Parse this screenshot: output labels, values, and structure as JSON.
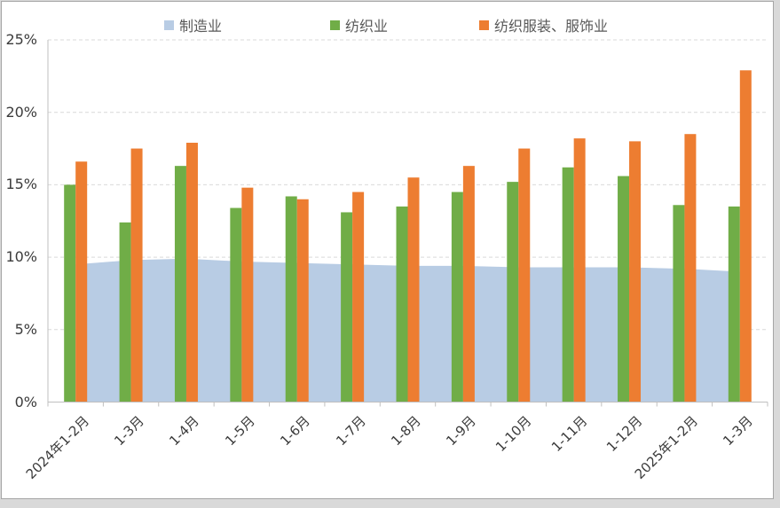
{
  "colors": {
    "grid": "#D9D9D9",
    "axis": "#BFBFBF",
    "tick_text": "#3B3B3B",
    "legend_text": "#595959",
    "frame_border": "#A6A6A6",
    "outer_background": "#D9D9D9",
    "background": "#FFFFFF"
  },
  "chart_data": {
    "type": "combo (area + grouped bars)",
    "title": "",
    "xlabel": "",
    "ylabel": "",
    "legend_position": "top",
    "grid": "horizontal dashed",
    "ylim": [
      0,
      25
    ],
    "y_ticks": [
      "0%",
      "5%",
      "10%",
      "15%",
      "20%",
      "25%"
    ],
    "y_tick_values": [
      0,
      5,
      10,
      15,
      20,
      25
    ],
    "categories": [
      "2024年1-2月",
      "1-3月",
      "1-4月",
      "1-5月",
      "1-6月",
      "1-7月",
      "1-8月",
      "1-9月",
      "1-10月",
      "1-11月",
      "1-12月",
      "2025年1-2月",
      "1-3月"
    ],
    "series": [
      {
        "name": "制造业",
        "chart_type": "area",
        "color": "#B8CCE4",
        "values": [
          9.5,
          9.8,
          9.9,
          9.7,
          9.6,
          9.5,
          9.4,
          9.4,
          9.3,
          9.3,
          9.3,
          9.2,
          9.0
        ]
      },
      {
        "name": "纺织业",
        "chart_type": "bar",
        "color": "#70AD47",
        "values": [
          15.0,
          12.4,
          16.3,
          13.4,
          14.2,
          13.1,
          13.5,
          14.5,
          15.2,
          16.2,
          15.6,
          13.6,
          13.5
        ]
      },
      {
        "name": "纺织服装、服饰业",
        "chart_type": "bar",
        "color": "#ED7D31",
        "values": [
          16.6,
          17.5,
          17.9,
          14.8,
          14.0,
          14.5,
          15.5,
          16.3,
          17.5,
          18.2,
          18.0,
          18.5,
          22.9
        ]
      }
    ]
  }
}
